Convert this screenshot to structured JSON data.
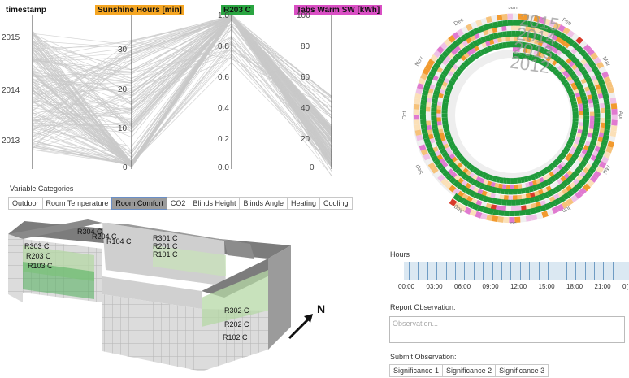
{
  "parallel_coordinates": {
    "axes": [
      {
        "title": "timestamp",
        "color": "",
        "ticks": [
          "2015",
          "2014",
          "2013"
        ]
      },
      {
        "title": "Sunshine Hours [min]",
        "color": "#f5a623",
        "ticks": [
          "30",
          "20",
          "10",
          "0"
        ]
      },
      {
        "title": "R203 C",
        "color": "#2aa541",
        "ticks": [
          "1.0",
          "0.8",
          "0.6",
          "0.4",
          "0.2",
          "0.0"
        ]
      },
      {
        "title": "Tabs Warm SW [kWh]",
        "color": "#d94fc4",
        "ticks": [
          "100",
          "80",
          "60",
          "40",
          "20",
          "0"
        ]
      }
    ]
  },
  "categories": {
    "label": "Variable Categories",
    "tabs": [
      "Outdoor",
      "Room Temperature",
      "Room Comfort",
      "CO2",
      "Blinds Height",
      "Blinds Angle",
      "Heating",
      "Cooling"
    ],
    "active": "Room Comfort"
  },
  "building": {
    "rooms": [
      "R304 C",
      "R204 C",
      "R104 C",
      "R301 C",
      "R201 C",
      "R101 C",
      "R303 C",
      "R203 C",
      "R103 C",
      "R302 C",
      "R202 C",
      "R102 C"
    ],
    "north": "N"
  },
  "spiral": {
    "years": [
      "2015",
      "2014",
      "2013",
      "2012"
    ],
    "months": [
      "Jan",
      "Feb",
      "Mar",
      "Apr",
      "Mai",
      "Jun",
      "Jul",
      "Aug",
      "Sep",
      "Oct",
      "Nov",
      "Dec"
    ]
  },
  "hours": {
    "label": "Hours",
    "ticks": [
      "00:00",
      "03:00",
      "06:00",
      "09:00",
      "12:00",
      "15:00",
      "18:00",
      "21:00",
      "0("
    ]
  },
  "report": {
    "label": "Report Observation:",
    "placeholder": "Observation..."
  },
  "submit": {
    "label": "Submit Observation:",
    "buttons": [
      "Significance 1",
      "Significance 2",
      "Significance 3"
    ]
  },
  "colors": {
    "green": "#1f9a3a",
    "orange": "#f29a2e",
    "pink": "#e07ad0",
    "red": "#d93a2a",
    "line": "#c9c9c9"
  }
}
